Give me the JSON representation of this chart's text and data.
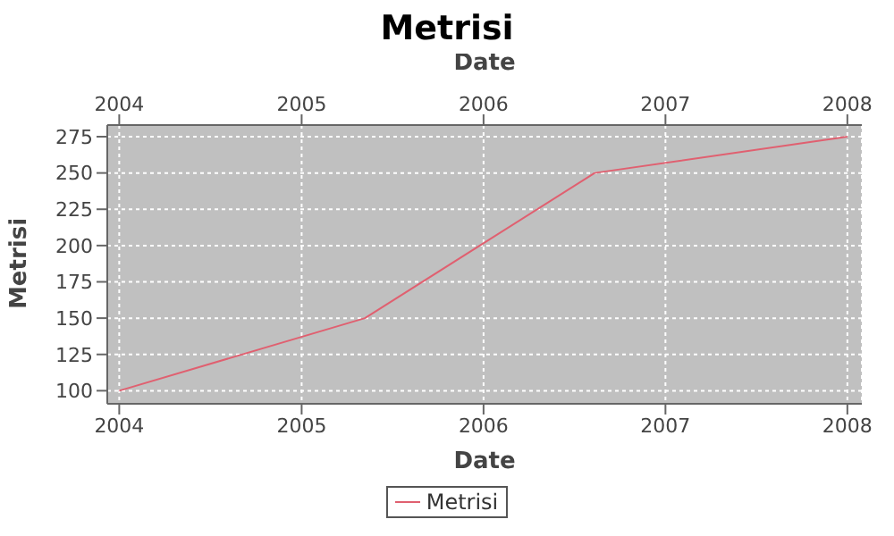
{
  "chart_data": {
    "type": "line",
    "title": "Metrisi",
    "xlabel": "Date",
    "x2label": "Date",
    "ylabel": "Metrisi",
    "x": [
      "2004-01-01",
      "2005-05-08",
      "2006-08-12",
      "2008-01-01"
    ],
    "series": [
      {
        "name": "Metrisi",
        "color": "#e06070",
        "values": [
          100,
          150,
          250,
          275
        ]
      }
    ],
    "xlim": [
      "2003-12-08",
      "2008-01-30"
    ],
    "xticks": [
      "2004",
      "2005",
      "2006",
      "2007",
      "2008"
    ],
    "x2lim": [
      "2003-12-08",
      "2008-01-30"
    ],
    "x2ticks": [
      "2004",
      "2005",
      "2006",
      "2007",
      "2008"
    ],
    "ylim": [
      91,
      283
    ],
    "yticks": [
      100,
      125,
      150,
      175,
      200,
      225,
      250,
      275
    ],
    "grid": true,
    "legend": "bottom",
    "marker": "none",
    "line_style": "solid"
  }
}
